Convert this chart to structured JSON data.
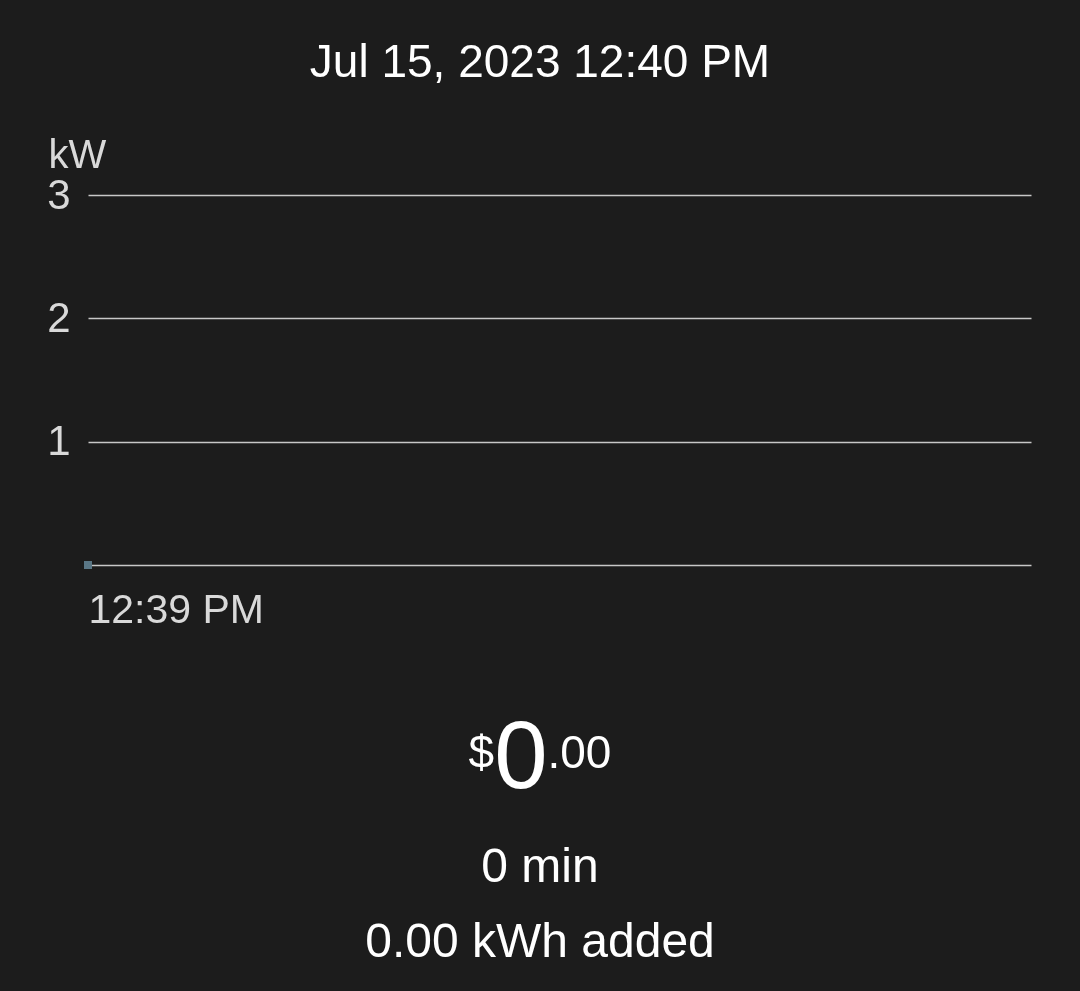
{
  "chart_data": {
    "type": "scatter",
    "title": "Jul 15, 2023 12:40 PM",
    "ylabel": "kW",
    "categories": [
      "12:39 PM"
    ],
    "values": [
      0
    ],
    "color": "#5a7786",
    "marker": "square",
    "ylim": [
      0,
      3
    ],
    "yticks": [
      {
        "value": 0,
        "label": null
      },
      1,
      2,
      3
    ],
    "grid": "y",
    "annotations": [
      "$0.00",
      "0 min",
      "0.00 kWh added"
    ]
  }
}
